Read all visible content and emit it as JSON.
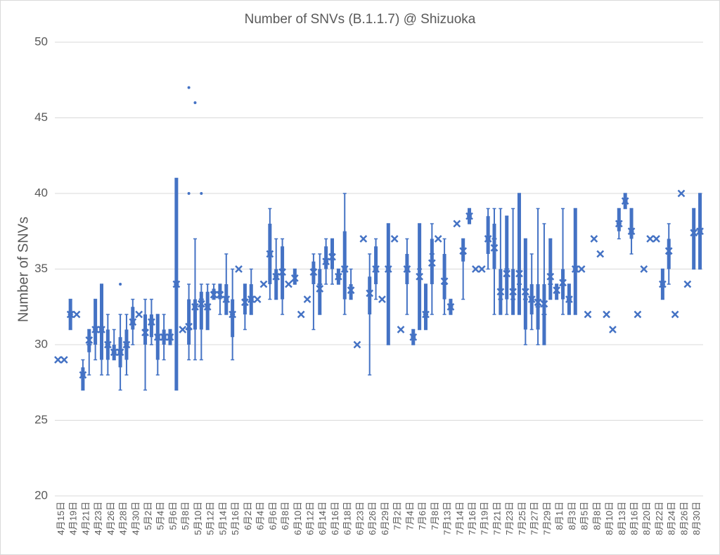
{
  "chart_data": {
    "type": "box",
    "title": "Number of SNVs (B.1.1.7) @ Shizuoka",
    "y_label": "Number of SNVs",
    "color": "#4472c4",
    "grid": true,
    "ylim": [
      20,
      50
    ],
    "yticks": [
      20,
      25,
      30,
      35,
      40,
      45,
      50
    ],
    "categories": [
      "4月15日",
      null,
      "4月19日",
      null,
      "4月21日",
      null,
      "4月23日",
      null,
      "4月26日",
      null,
      "4月28日",
      null,
      "4月30日",
      null,
      "5月2日",
      null,
      "5月4日",
      null,
      "5月6日",
      null,
      "5月8日",
      null,
      "5月10日",
      null,
      "5月12日",
      null,
      "5月14日",
      null,
      "5月16日",
      null,
      "6月2日",
      null,
      "6月4日",
      null,
      "6月6日",
      null,
      "6月8日",
      null,
      "6月10日",
      null,
      "6月12日",
      null,
      "6月14日",
      null,
      "6月16日",
      null,
      "6月18日",
      null,
      "6月23日",
      null,
      "6月26日",
      null,
      "6月29日",
      null,
      "7月2日",
      null,
      "7月4日",
      null,
      "7月6日",
      null,
      "7月8日",
      null,
      "7月13日",
      null,
      "7月14日",
      null,
      "7月16日",
      null,
      "7月19日",
      null,
      "7月21日",
      null,
      "7月23日",
      null,
      "7月25日",
      null,
      "7月27日",
      null,
      "7月29日",
      null,
      "8月1日",
      null,
      "8月3日",
      null,
      "8月5日",
      null,
      "8月8日",
      null,
      "8月10日",
      null,
      "8月13日",
      null,
      "8月16日",
      null,
      "8月20日",
      null,
      "8月22日",
      null,
      "8月24日",
      null,
      "8月26日",
      null,
      "8月30日",
      null
    ],
    "boxes": [
      {
        "mean": 29
      },
      {
        "mean": 29
      },
      {
        "min": 31,
        "q1": 31,
        "median": 32,
        "q3": 33,
        "max": 33,
        "mean": 32
      },
      {
        "mean": 32
      },
      {
        "min": 27,
        "q1": 27,
        "median": 28,
        "q3": 28.5,
        "max": 29,
        "mean": 28
      },
      {
        "min": 28,
        "q1": 29.5,
        "median": 30,
        "q3": 31,
        "max": 31,
        "mean": 30.3
      },
      {
        "min": 29,
        "q1": 30,
        "median": 31,
        "q3": 33,
        "max": 33,
        "mean": 31
      },
      {
        "min": 28,
        "q1": 29,
        "median": 31,
        "q3": 34,
        "max": 34,
        "mean": 31
      },
      {
        "min": 28,
        "q1": 29,
        "median": 30,
        "q3": 31,
        "max": 32,
        "mean": 30
      },
      {
        "min": 29,
        "q1": 29,
        "median": 29.5,
        "q3": 30,
        "max": 31,
        "mean": 29.5
      },
      {
        "min": 27,
        "q1": 28.5,
        "median": 29.5,
        "q3": 30.5,
        "max": 32,
        "mean": 29.5,
        "outliers": [
          34
        ]
      },
      {
        "min": 28,
        "q1": 29,
        "median": 30,
        "q3": 31,
        "max": 32,
        "mean": 30
      },
      {
        "min": 30,
        "q1": 31,
        "median": 31.5,
        "q3": 32.5,
        "max": 33,
        "mean": 31.5
      },
      {
        "mean": 32
      },
      {
        "min": 27,
        "q1": 30,
        "median": 31,
        "q3": 32,
        "max": 33,
        "mean": 30.8
      },
      {
        "min": 30,
        "q1": 30.5,
        "median": 31.5,
        "q3": 32,
        "max": 33,
        "mean": 31.5
      },
      {
        "min": 28,
        "q1": 29,
        "median": 30.5,
        "q3": 32,
        "max": 32,
        "mean": 30.5
      },
      {
        "min": 29,
        "q1": 30,
        "median": 30.5,
        "q3": 31,
        "max": 32,
        "mean": 30.5
      },
      {
        "min": 30,
        "q1": 30,
        "median": 30.5,
        "q3": 31,
        "max": 31,
        "mean": 30.5
      },
      {
        "min": 27,
        "q1": 27,
        "median": 34,
        "q3": 41,
        "max": 41,
        "mean": 34
      },
      {
        "mean": 31
      },
      {
        "min": 29,
        "q1": 30,
        "median": 31,
        "q3": 33,
        "max": 34,
        "mean": 31.2,
        "outliers": [
          40,
          47
        ]
      },
      {
        "min": 29,
        "q1": 31,
        "median": 32.5,
        "q3": 33,
        "max": 37,
        "mean": 32.5,
        "outliers": [
          46
        ]
      },
      {
        "min": 29,
        "q1": 31,
        "median": 33,
        "q3": 33.5,
        "max": 34,
        "mean": 32.7,
        "outliers": [
          40
        ]
      },
      {
        "min": 31,
        "q1": 31,
        "median": 32.5,
        "q3": 33.5,
        "max": 34,
        "mean": 32.5
      },
      {
        "min": 33,
        "q1": 33,
        "median": 33.5,
        "q3": 33.7,
        "max": 34,
        "mean": 33.3
      },
      {
        "min": 32,
        "q1": 33,
        "median": 33.5,
        "q3": 34,
        "max": 34,
        "mean": 33.3
      },
      {
        "min": 32,
        "q1": 32,
        "median": 33,
        "q3": 34,
        "max": 36,
        "mean": 33
      },
      {
        "min": 29,
        "q1": 30.5,
        "median": 32,
        "q3": 33,
        "max": 35,
        "mean": 32
      },
      {
        "mean": 35
      },
      {
        "min": 31,
        "q1": 32,
        "median": 33,
        "q3": 34,
        "max": 34,
        "mean": 32.8
      },
      {
        "min": 32,
        "q1": 32,
        "median": 33,
        "q3": 34,
        "max": 35,
        "mean": 33
      },
      {
        "mean": 33
      },
      {
        "mean": 34
      },
      {
        "min": 33,
        "q1": 34,
        "median": 36,
        "q3": 38,
        "max": 39,
        "mean": 36
      },
      {
        "min": 33,
        "q1": 33,
        "median": 34.5,
        "q3": 35,
        "max": 37,
        "mean": 34.5
      },
      {
        "min": 32,
        "q1": 33,
        "median": 35,
        "q3": 36.5,
        "max": 37,
        "mean": 34.8
      },
      {
        "mean": 34
      },
      {
        "min": 34,
        "q1": 34,
        "median": 34.5,
        "q3": 35,
        "max": 35,
        "mean": 34.4
      },
      {
        "mean": 32
      },
      {
        "mean": 33
      },
      {
        "min": 31,
        "q1": 34,
        "median": 35,
        "q3": 35.5,
        "max": 36,
        "mean": 34.8
      },
      {
        "min": 32,
        "q1": 32,
        "median": 34,
        "q3": 35,
        "max": 36,
        "mean": 33.7
      },
      {
        "min": 34,
        "q1": 35,
        "median": 35.5,
        "q3": 36.5,
        "max": 37,
        "mean": 35.5
      },
      {
        "min": 34,
        "q1": 35,
        "median": 36,
        "q3": 37,
        "max": 37,
        "mean": 35.8
      },
      {
        "min": 34,
        "q1": 34,
        "median": 34.5,
        "q3": 35,
        "max": 35,
        "mean": 34.5
      },
      {
        "min": 32,
        "q1": 33,
        "median": 35,
        "q3": 37.5,
        "max": 40,
        "mean": 35
      },
      {
        "min": 33,
        "q1": 33,
        "median": 33.5,
        "q3": 34,
        "max": 35,
        "mean": 33.6
      },
      {
        "mean": 30
      },
      {
        "mean": 37
      },
      {
        "min": 28,
        "q1": 32,
        "median": 33.5,
        "q3": 34.5,
        "max": 36,
        "mean": 33.4
      },
      {
        "min": 33,
        "q1": 34,
        "median": 35,
        "q3": 36.5,
        "max": 37,
        "mean": 35
      },
      {
        "mean": 33
      },
      {
        "min": 30,
        "q1": 30,
        "median": 35,
        "q3": 38,
        "max": 38,
        "mean": 35
      },
      {
        "mean": 37
      },
      {
        "mean": 31
      },
      {
        "min": 32,
        "q1": 34,
        "median": 35,
        "q3": 36,
        "max": 37,
        "mean": 35
      },
      {
        "min": 30,
        "q1": 30,
        "median": 30.5,
        "q3": 31,
        "max": 31,
        "mean": 30.5
      },
      {
        "min": 31,
        "q1": 31,
        "median": 35,
        "q3": 38,
        "max": 38,
        "mean": 34.5
      },
      {
        "min": 31,
        "q1": 31,
        "median": 32,
        "q3": 34,
        "max": 34,
        "mean": 32
      },
      {
        "min": 32,
        "q1": 34,
        "median": 36,
        "q3": 37,
        "max": 38,
        "mean": 35.4
      },
      {
        "mean": 37
      },
      {
        "min": 32,
        "q1": 33,
        "median": 34,
        "q3": 36,
        "max": 37,
        "mean": 34.2
      },
      {
        "min": 32,
        "q1": 32,
        "median": 32.5,
        "q3": 33,
        "max": 33,
        "mean": 32.5
      },
      {
        "mean": 38
      },
      {
        "min": 33,
        "q1": 35.5,
        "median": 36,
        "q3": 37,
        "max": 37,
        "mean": 36.2
      },
      {
        "min": 38,
        "q1": 38,
        "median": 38.5,
        "q3": 39,
        "max": 39,
        "mean": 38.5
      },
      {
        "mean": 35
      },
      {
        "mean": 35
      },
      {
        "min": 35,
        "q1": 36,
        "median": 37,
        "q3": 38.5,
        "max": 39,
        "mean": 37
      },
      {
        "min": 32,
        "q1": 35,
        "median": 37,
        "q3": 38,
        "max": 39,
        "mean": 36.4
      },
      {
        "min": 32,
        "q1": 32,
        "median": 33,
        "q3": 35,
        "max": 39,
        "mean": 33.5
      },
      {
        "min": 32,
        "q1": 33,
        "median": 35,
        "q3": 38.5,
        "max": 38.5,
        "mean": 34.7
      },
      {
        "min": 32,
        "q1": 32,
        "median": 33,
        "q3": 35,
        "max": 39,
        "mean": 33.5
      },
      {
        "min": 32,
        "q1": 32,
        "median": 34,
        "q3": 40,
        "max": 40,
        "mean": 34.7
      },
      {
        "min": 30,
        "q1": 31,
        "median": 33,
        "q3": 37,
        "max": 37,
        "mean": 33.5
      },
      {
        "min": 31,
        "q1": 32,
        "median": 33,
        "q3": 34,
        "max": 36,
        "mean": 33
      },
      {
        "min": 30,
        "q1": 31,
        "median": 32.5,
        "q3": 34,
        "max": 39,
        "mean": 32.8
      },
      {
        "min": 30,
        "q1": 30,
        "median": 32,
        "q3": 34,
        "max": 38,
        "mean": 32.7
      },
      {
        "min": 33,
        "q1": 33,
        "median": 34,
        "q3": 37,
        "max": 37,
        "mean": 34.5
      },
      {
        "min": 33,
        "q1": 33,
        "median": 33.5,
        "q3": 34,
        "max": 34,
        "mean": 33.6
      },
      {
        "min": 32,
        "q1": 33,
        "median": 34,
        "q3": 35,
        "max": 39,
        "mean": 34.1
      },
      {
        "min": 32,
        "q1": 32,
        "median": 33,
        "q3": 34,
        "max": 34,
        "mean": 33
      },
      {
        "min": 32,
        "q1": 32,
        "median": 35,
        "q3": 39,
        "max": 39,
        "mean": 35
      },
      {
        "mean": 35
      },
      {
        "mean": 32
      },
      {
        "mean": 37
      },
      {
        "mean": 36
      },
      {
        "mean": 32
      },
      {
        "mean": 31
      },
      {
        "min": 37,
        "q1": 37.5,
        "median": 38,
        "q3": 39,
        "max": 39,
        "mean": 38
      },
      {
        "min": 39,
        "q1": 39,
        "median": 39.5,
        "q3": 40,
        "max": 40,
        "mean": 39.5
      },
      {
        "min": 36,
        "q1": 37,
        "median": 37.5,
        "q3": 39,
        "max": 39,
        "mean": 37.5
      },
      {
        "mean": 32
      },
      {
        "mean": 35
      },
      {
        "mean": 37
      },
      {
        "mean": 37
      },
      {
        "min": 33,
        "q1": 33,
        "median": 34,
        "q3": 35,
        "max": 35,
        "mean": 34
      },
      {
        "min": 34,
        "q1": 35,
        "median": 36,
        "q3": 37,
        "max": 38,
        "mean": 36.2
      },
      {
        "mean": 32
      },
      {
        "mean": 40
      },
      {
        "mean": 34
      },
      {
        "min": 35,
        "q1": 35,
        "median": 37.5,
        "q3": 39,
        "max": 39,
        "mean": 37.4
      },
      {
        "min": 35,
        "q1": 35,
        "median": 37.5,
        "q3": 40,
        "max": 40,
        "mean": 37.5
      }
    ]
  }
}
